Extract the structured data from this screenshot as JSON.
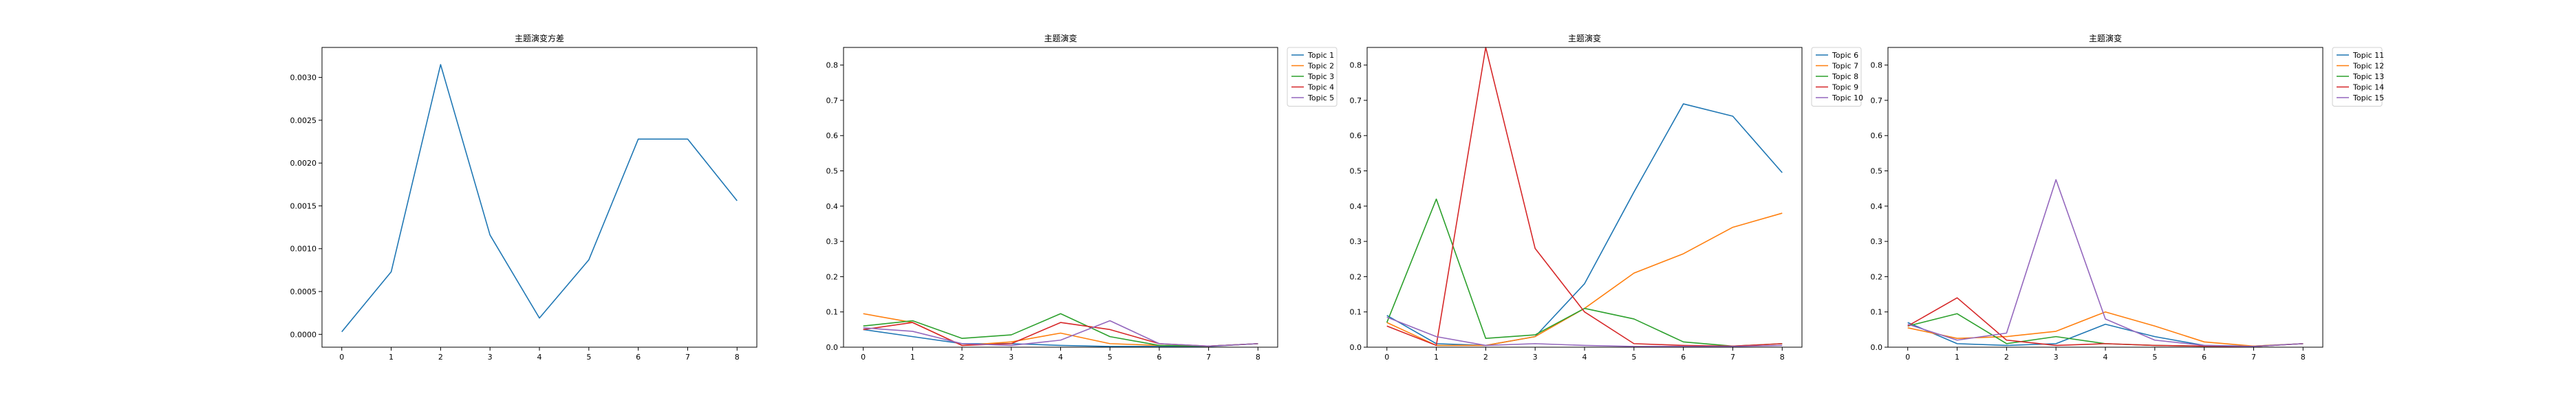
{
  "chart_data": [
    {
      "type": "line",
      "title": "主题演变方差",
      "x": [
        0,
        1,
        2,
        3,
        4,
        5,
        6,
        7,
        8
      ],
      "xticks": [
        "0",
        "1",
        "2",
        "3",
        "4",
        "5",
        "6",
        "7",
        "8"
      ],
      "yticks": [
        "0.0000",
        "0.0005",
        "0.0010",
        "0.0015",
        "0.0020",
        "0.0025",
        "0.0030"
      ],
      "ylim": [
        -0.00015,
        0.00335
      ],
      "legend": null,
      "series": [
        {
          "color": "#1f77b4",
          "values": [
            3e-05,
            0.00073,
            0.00315,
            0.00116,
            0.00019,
            0.00087,
            0.00228,
            0.00228,
            0.00156
          ]
        }
      ]
    },
    {
      "type": "line",
      "title": "主题演变",
      "x": [
        0,
        1,
        2,
        3,
        4,
        5,
        6,
        7,
        8
      ],
      "xticks": [
        "0",
        "1",
        "2",
        "3",
        "4",
        "5",
        "6",
        "7",
        "8"
      ],
      "yticks": [
        "0.0",
        "0.1",
        "0.2",
        "0.3",
        "0.4",
        "0.5",
        "0.6",
        "0.7",
        "0.8"
      ],
      "ylim": [
        0,
        0.85
      ],
      "legend": "outside-right",
      "series": [
        {
          "name": "Topic 1",
          "color": "#1f77b4",
          "values": [
            0.05,
            0.03,
            0.01,
            0.01,
            0.005,
            0.002,
            0.002,
            0.002,
            0.01
          ]
        },
        {
          "name": "Topic 2",
          "color": "#ff7f0e",
          "values": [
            0.095,
            0.07,
            0.005,
            0.015,
            0.04,
            0.01,
            0.005,
            0.003,
            0.01
          ]
        },
        {
          "name": "Topic 3",
          "color": "#2ca02c",
          "values": [
            0.06,
            0.075,
            0.025,
            0.035,
            0.095,
            0.03,
            0.005,
            0.003,
            0.01
          ]
        },
        {
          "name": "Topic 4",
          "color": "#d62728",
          "values": [
            0.05,
            0.07,
            0.005,
            0.01,
            0.07,
            0.05,
            0.01,
            0.003,
            0.01
          ]
        },
        {
          "name": "Topic 5",
          "color": "#9467bd",
          "values": [
            0.055,
            0.045,
            0.01,
            0.005,
            0.02,
            0.075,
            0.01,
            0.003,
            0.01
          ]
        }
      ]
    },
    {
      "type": "line",
      "title": "主题演变",
      "x": [
        0,
        1,
        2,
        3,
        4,
        5,
        6,
        7,
        8
      ],
      "xticks": [
        "0",
        "1",
        "2",
        "3",
        "4",
        "5",
        "6",
        "7",
        "8"
      ],
      "yticks": [
        "0.0",
        "0.1",
        "0.2",
        "0.3",
        "0.4",
        "0.5",
        "0.6",
        "0.7",
        "0.8"
      ],
      "ylim": [
        0,
        0.85
      ],
      "legend": "outside-right",
      "series": [
        {
          "name": "Topic 6",
          "color": "#1f77b4",
          "values": [
            0.09,
            0.01,
            0.005,
            0.03,
            0.18,
            0.44,
            0.69,
            0.655,
            0.495
          ]
        },
        {
          "name": "Topic 7",
          "color": "#ff7f0e",
          "values": [
            0.07,
            0.005,
            0.005,
            0.03,
            0.11,
            0.21,
            0.265,
            0.34,
            0.38
          ]
        },
        {
          "name": "Topic 8",
          "color": "#2ca02c",
          "values": [
            0.07,
            0.42,
            0.025,
            0.035,
            0.11,
            0.08,
            0.015,
            0.003,
            0.01
          ]
        },
        {
          "name": "Topic 9",
          "color": "#d62728",
          "values": [
            0.06,
            0.005,
            0.85,
            0.28,
            0.1,
            0.01,
            0.005,
            0.003,
            0.01
          ]
        },
        {
          "name": "Topic 10",
          "color": "#9467bd",
          "values": [
            0.085,
            0.03,
            0.005,
            0.01,
            0.005,
            0.002,
            0.002,
            0.002,
            0.005
          ]
        }
      ]
    },
    {
      "type": "line",
      "title": "主题演变",
      "x": [
        0,
        1,
        2,
        3,
        4,
        5,
        6,
        7,
        8
      ],
      "xticks": [
        "0",
        "1",
        "2",
        "3",
        "4",
        "5",
        "6",
        "7",
        "8"
      ],
      "yticks": [
        "0.0",
        "0.1",
        "0.2",
        "0.3",
        "0.4",
        "0.5",
        "0.6",
        "0.7",
        "0.8"
      ],
      "ylim": [
        0,
        0.85
      ],
      "legend": "outside-right",
      "series": [
        {
          "name": "Topic 11",
          "color": "#1f77b4",
          "values": [
            0.07,
            0.01,
            0.005,
            0.01,
            0.065,
            0.03,
            0.005,
            0.003,
            0.01
          ]
        },
        {
          "name": "Topic 12",
          "color": "#ff7f0e",
          "values": [
            0.055,
            0.025,
            0.03,
            0.045,
            0.1,
            0.06,
            0.015,
            0.003,
            0.01
          ]
        },
        {
          "name": "Topic 13",
          "color": "#2ca02c",
          "values": [
            0.06,
            0.095,
            0.01,
            0.03,
            0.01,
            0.005,
            0.003,
            0.002,
            0.01
          ]
        },
        {
          "name": "Topic 14",
          "color": "#d62728",
          "values": [
            0.06,
            0.14,
            0.02,
            0.005,
            0.01,
            0.005,
            0.003,
            0.002,
            0.01
          ]
        },
        {
          "name": "Topic 15",
          "color": "#9467bd",
          "values": [
            0.065,
            0.02,
            0.04,
            0.475,
            0.08,
            0.02,
            0.005,
            0.002,
            0.01
          ]
        }
      ]
    }
  ]
}
